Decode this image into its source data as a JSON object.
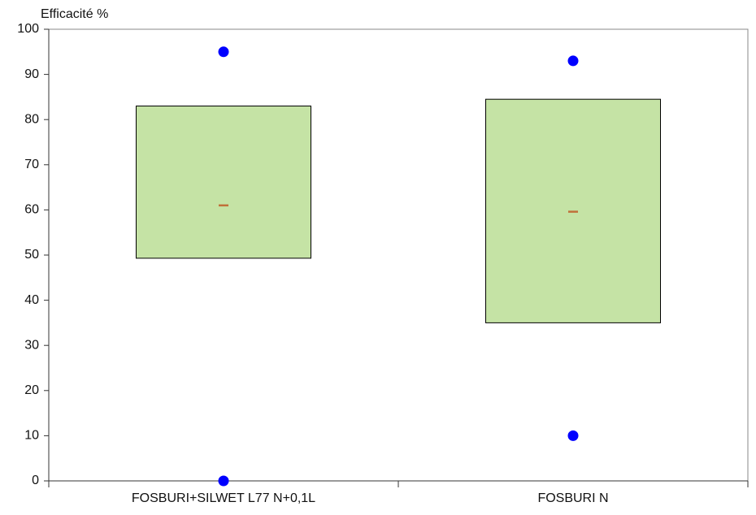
{
  "chart_data": {
    "type": "box",
    "y_label": "Efficacité %",
    "categories": [
      "FOSBURI+SILWET L77 N+0,1L",
      "FOSBURI N"
    ],
    "min": [
      0,
      10
    ],
    "q1": [
      49.3,
      35
    ],
    "median": [
      61,
      59.6
    ],
    "q3": [
      83,
      84.5
    ],
    "max": [
      95,
      93
    ],
    "box_color": "#c5e3a5",
    "median_color": "#c0703a",
    "point_color": "#0000ff",
    "ylim": [
      0,
      100
    ],
    "yticks": [
      0,
      10,
      20,
      30,
      40,
      50,
      60,
      70,
      80,
      90,
      100
    ],
    "grid": false
  }
}
